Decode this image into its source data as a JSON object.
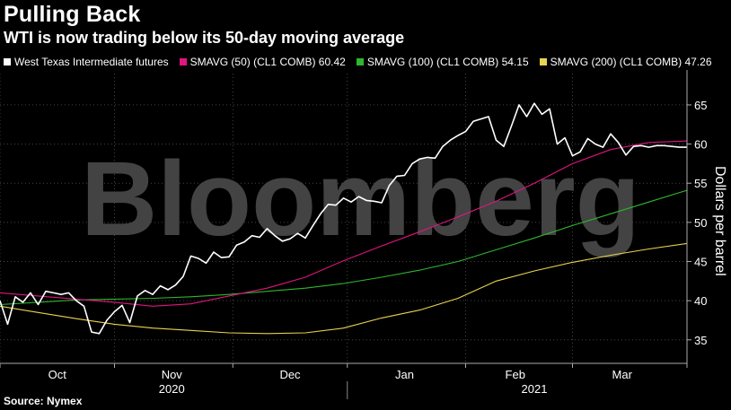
{
  "title": "Pulling Back",
  "subtitle": "WTI is now trading below its 50-day moving average",
  "source": "Source: Nymex",
  "watermark": "Bloomberg",
  "legend": [
    {
      "label": "West Texas Intermediate futures",
      "color": "#ffffff"
    },
    {
      "label": "SMAVG (50) (CL1 COMB) 60.42",
      "color": "#e0157f"
    },
    {
      "label": "SMAVG (100) (CL1 COMB) 54.15",
      "color": "#2fb52f"
    },
    {
      "label": "SMAVG (200) (CL1 COMB) 47.26",
      "color": "#e8d44d"
    }
  ],
  "chart_data": {
    "type": "line",
    "title": "Pulling Back",
    "subtitle": "WTI is now trading below its 50-day moving average",
    "ylabel": "Dollars per barrel",
    "ylim": [
      32,
      69
    ],
    "yticks": [
      35,
      40,
      45,
      50,
      55,
      60,
      65
    ],
    "xlim": [
      0,
      180
    ],
    "xticks": [
      {
        "label": "Oct",
        "x": 15
      },
      {
        "label": "Nov",
        "x": 45
      },
      {
        "label": "Dec",
        "x": 76
      },
      {
        "label": "Jan",
        "x": 106
      },
      {
        "label": "Feb",
        "x": 135
      },
      {
        "label": "Mar",
        "x": 163
      }
    ],
    "year_labels": [
      {
        "label": "2020",
        "x": 45
      },
      {
        "label": "2021",
        "x": 140
      }
    ],
    "series": [
      {
        "name": "West Texas Intermediate futures",
        "color": "#ffffff",
        "x": [
          0,
          2,
          4,
          6,
          8,
          10,
          12,
          14,
          16,
          18,
          20,
          22,
          24,
          26,
          28,
          30,
          32,
          34,
          36,
          38,
          40,
          42,
          44,
          46,
          48,
          50,
          52,
          54,
          56,
          58,
          60,
          62,
          64,
          66,
          68,
          70,
          72,
          74,
          76,
          78,
          80,
          82,
          84,
          86,
          88,
          90,
          92,
          94,
          96,
          98,
          100,
          102,
          104,
          106,
          108,
          110,
          112,
          114,
          116,
          118,
          120,
          122,
          124,
          126,
          128,
          130,
          132,
          134,
          136,
          138,
          140,
          142,
          144,
          146,
          148,
          150,
          152,
          154,
          156,
          158,
          160,
          162,
          164,
          166,
          168,
          170,
          172,
          174,
          176,
          178,
          180
        ],
        "values": [
          40.0,
          37.0,
          40.5,
          39.8,
          41.0,
          39.5,
          41.2,
          41.0,
          40.8,
          41.0,
          40.0,
          39.3,
          36.0,
          35.8,
          37.5,
          38.6,
          39.4,
          37.2,
          40.6,
          41.3,
          40.8,
          41.9,
          41.4,
          42.0,
          43.1,
          45.7,
          45.4,
          44.8,
          46.2,
          45.5,
          45.6,
          47.1,
          47.5,
          48.3,
          48.1,
          49.2,
          48.3,
          47.6,
          47.9,
          48.6,
          48.0,
          49.6,
          51.1,
          52.3,
          52.2,
          53.1,
          52.6,
          53.3,
          52.8,
          52.7,
          52.5,
          54.7,
          55.9,
          56.0,
          57.5,
          58.1,
          58.3,
          58.2,
          59.7,
          60.5,
          61.1,
          61.6,
          62.9,
          63.2,
          63.5,
          60.5,
          59.7,
          62.3,
          65.0,
          63.5,
          65.2,
          63.8,
          64.5,
          60.0,
          60.8,
          58.5,
          59.0,
          60.7,
          60.0,
          59.6,
          61.3,
          60.2,
          58.6,
          59.7,
          59.8,
          59.6,
          59.8,
          59.8,
          59.7,
          59.6,
          59.6
        ]
      },
      {
        "name": "SMAVG (50) (CL1 COMB) 60.42",
        "color": "#e0157f",
        "x": [
          0,
          10,
          20,
          30,
          40,
          50,
          60,
          70,
          80,
          90,
          100,
          110,
          120,
          130,
          140,
          150,
          160,
          170,
          180
        ],
        "values": [
          41.0,
          40.6,
          40.2,
          39.8,
          39.3,
          39.6,
          40.6,
          41.6,
          43.0,
          45.1,
          47.0,
          48.8,
          50.7,
          52.7,
          55.0,
          57.5,
          59.3,
          60.2,
          60.4
        ]
      },
      {
        "name": "SMAVG (100) (CL1 COMB) 54.15",
        "color": "#2fb52f",
        "x": [
          0,
          10,
          20,
          30,
          40,
          50,
          60,
          70,
          80,
          90,
          100,
          110,
          120,
          130,
          140,
          150,
          160,
          170,
          180
        ],
        "values": [
          39.5,
          39.8,
          40.1,
          40.2,
          40.3,
          40.5,
          40.8,
          41.2,
          41.6,
          42.2,
          43.0,
          43.9,
          45.0,
          46.5,
          48.0,
          49.6,
          51.1,
          52.6,
          54.1
        ]
      },
      {
        "name": "SMAVG (200) (CL1 COMB) 47.26",
        "color": "#e8d44d",
        "x": [
          0,
          10,
          20,
          30,
          40,
          50,
          60,
          70,
          80,
          90,
          100,
          110,
          120,
          130,
          140,
          150,
          160,
          170,
          180
        ],
        "values": [
          39.3,
          38.5,
          37.7,
          37.0,
          36.5,
          36.2,
          35.9,
          35.8,
          35.9,
          36.5,
          37.8,
          38.8,
          40.3,
          42.5,
          43.8,
          44.9,
          45.8,
          46.6,
          47.3
        ]
      }
    ]
  }
}
